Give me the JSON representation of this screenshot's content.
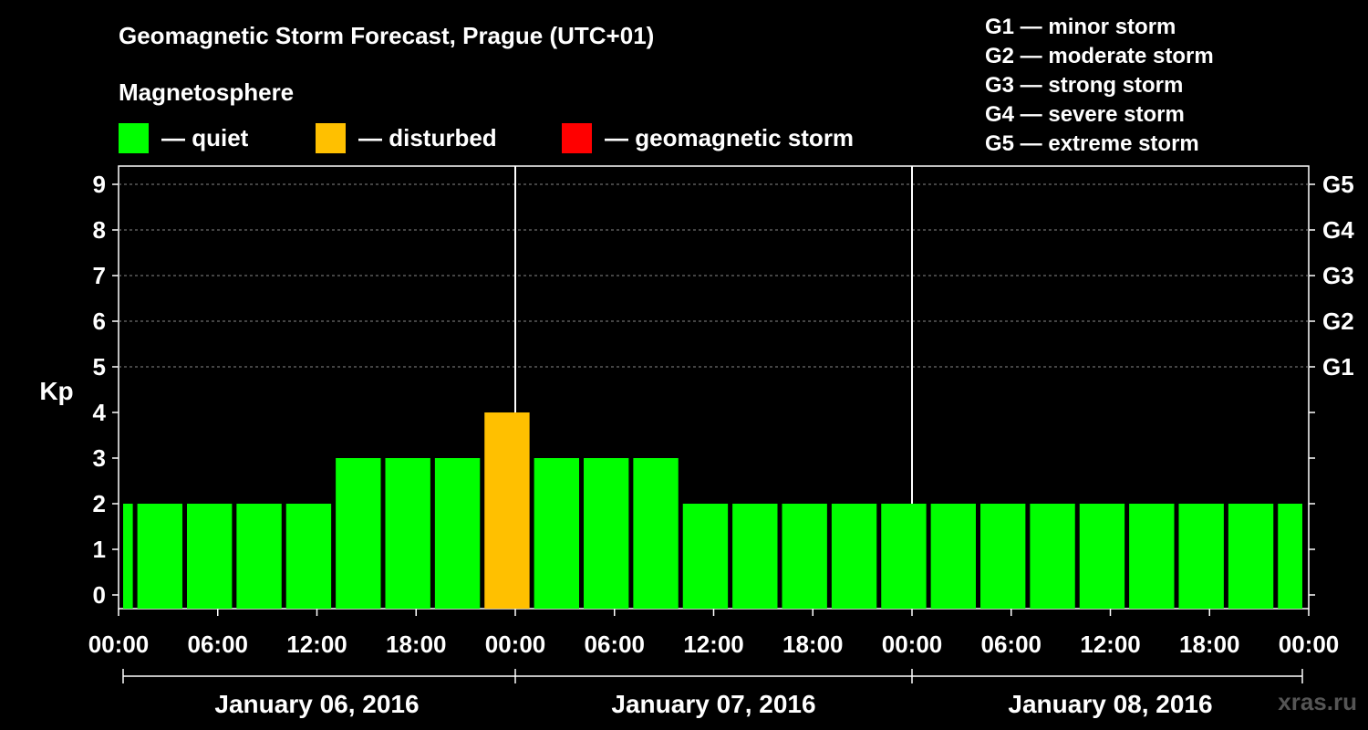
{
  "title": "Geomagnetic Storm Forecast, Prague (UTC+01)",
  "legend": {
    "heading": "Magnetosphere",
    "items": [
      {
        "label": "— quiet",
        "color": "#00ff00"
      },
      {
        "label": "— disturbed",
        "color": "#ffc000"
      },
      {
        "label": "— geomagnetic storm",
        "color": "#ff0000"
      }
    ]
  },
  "storm_scale": [
    "G1 — minor storm",
    "G2 — moderate storm",
    "G3 — strong storm",
    "G4 — severe storm",
    "G5 — extreme storm"
  ],
  "credit": "xras.ru",
  "chart_data": {
    "type": "bar",
    "ylabel": "Kp",
    "ylim": [
      0,
      9
    ],
    "yticks": [
      "0",
      "1",
      "2",
      "3",
      "4",
      "5",
      "6",
      "7",
      "8",
      "9"
    ],
    "right_axis": [
      {
        "value": 5,
        "label": "G1"
      },
      {
        "value": 6,
        "label": "G2"
      },
      {
        "value": 7,
        "label": "G3"
      },
      {
        "value": 8,
        "label": "G4"
      },
      {
        "value": 9,
        "label": "G5"
      }
    ],
    "xtick_labels": [
      "00:00",
      "06:00",
      "12:00",
      "18:00",
      "00:00",
      "06:00",
      "12:00",
      "18:00",
      "00:00",
      "06:00",
      "12:00",
      "18:00",
      "00:00"
    ],
    "days": [
      "January 06, 2016",
      "January 07, 2016",
      "January 08, 2016"
    ],
    "hours_total": 72,
    "bars": [
      {
        "start": 0,
        "end": 1,
        "kp": 2,
        "color": "#00ff00"
      },
      {
        "start": 1,
        "end": 4,
        "kp": 2,
        "color": "#00ff00"
      },
      {
        "start": 4,
        "end": 7,
        "kp": 2,
        "color": "#00ff00"
      },
      {
        "start": 7,
        "end": 10,
        "kp": 2,
        "color": "#00ff00"
      },
      {
        "start": 10,
        "end": 13,
        "kp": 2,
        "color": "#00ff00"
      },
      {
        "start": 13,
        "end": 16,
        "kp": 3,
        "color": "#00ff00"
      },
      {
        "start": 16,
        "end": 19,
        "kp": 3,
        "color": "#00ff00"
      },
      {
        "start": 19,
        "end": 22,
        "kp": 3,
        "color": "#00ff00"
      },
      {
        "start": 22,
        "end": 25,
        "kp": 4,
        "color": "#ffc000"
      },
      {
        "start": 25,
        "end": 28,
        "kp": 3,
        "color": "#00ff00"
      },
      {
        "start": 28,
        "end": 31,
        "kp": 3,
        "color": "#00ff00"
      },
      {
        "start": 31,
        "end": 34,
        "kp": 3,
        "color": "#00ff00"
      },
      {
        "start": 34,
        "end": 37,
        "kp": 2,
        "color": "#00ff00"
      },
      {
        "start": 37,
        "end": 40,
        "kp": 2,
        "color": "#00ff00"
      },
      {
        "start": 40,
        "end": 43,
        "kp": 2,
        "color": "#00ff00"
      },
      {
        "start": 43,
        "end": 46,
        "kp": 2,
        "color": "#00ff00"
      },
      {
        "start": 46,
        "end": 49,
        "kp": 2,
        "color": "#00ff00"
      },
      {
        "start": 49,
        "end": 52,
        "kp": 2,
        "color": "#00ff00"
      },
      {
        "start": 52,
        "end": 55,
        "kp": 2,
        "color": "#00ff00"
      },
      {
        "start": 55,
        "end": 58,
        "kp": 2,
        "color": "#00ff00"
      },
      {
        "start": 58,
        "end": 61,
        "kp": 2,
        "color": "#00ff00"
      },
      {
        "start": 61,
        "end": 64,
        "kp": 2,
        "color": "#00ff00"
      },
      {
        "start": 64,
        "end": 67,
        "kp": 2,
        "color": "#00ff00"
      },
      {
        "start": 67,
        "end": 70,
        "kp": 2,
        "color": "#00ff00"
      },
      {
        "start": 70,
        "end": 72,
        "kp": 2,
        "color": "#00ff00"
      }
    ],
    "now_marker_hour": 24,
    "day_boundary_hours": [
      48
    ]
  }
}
